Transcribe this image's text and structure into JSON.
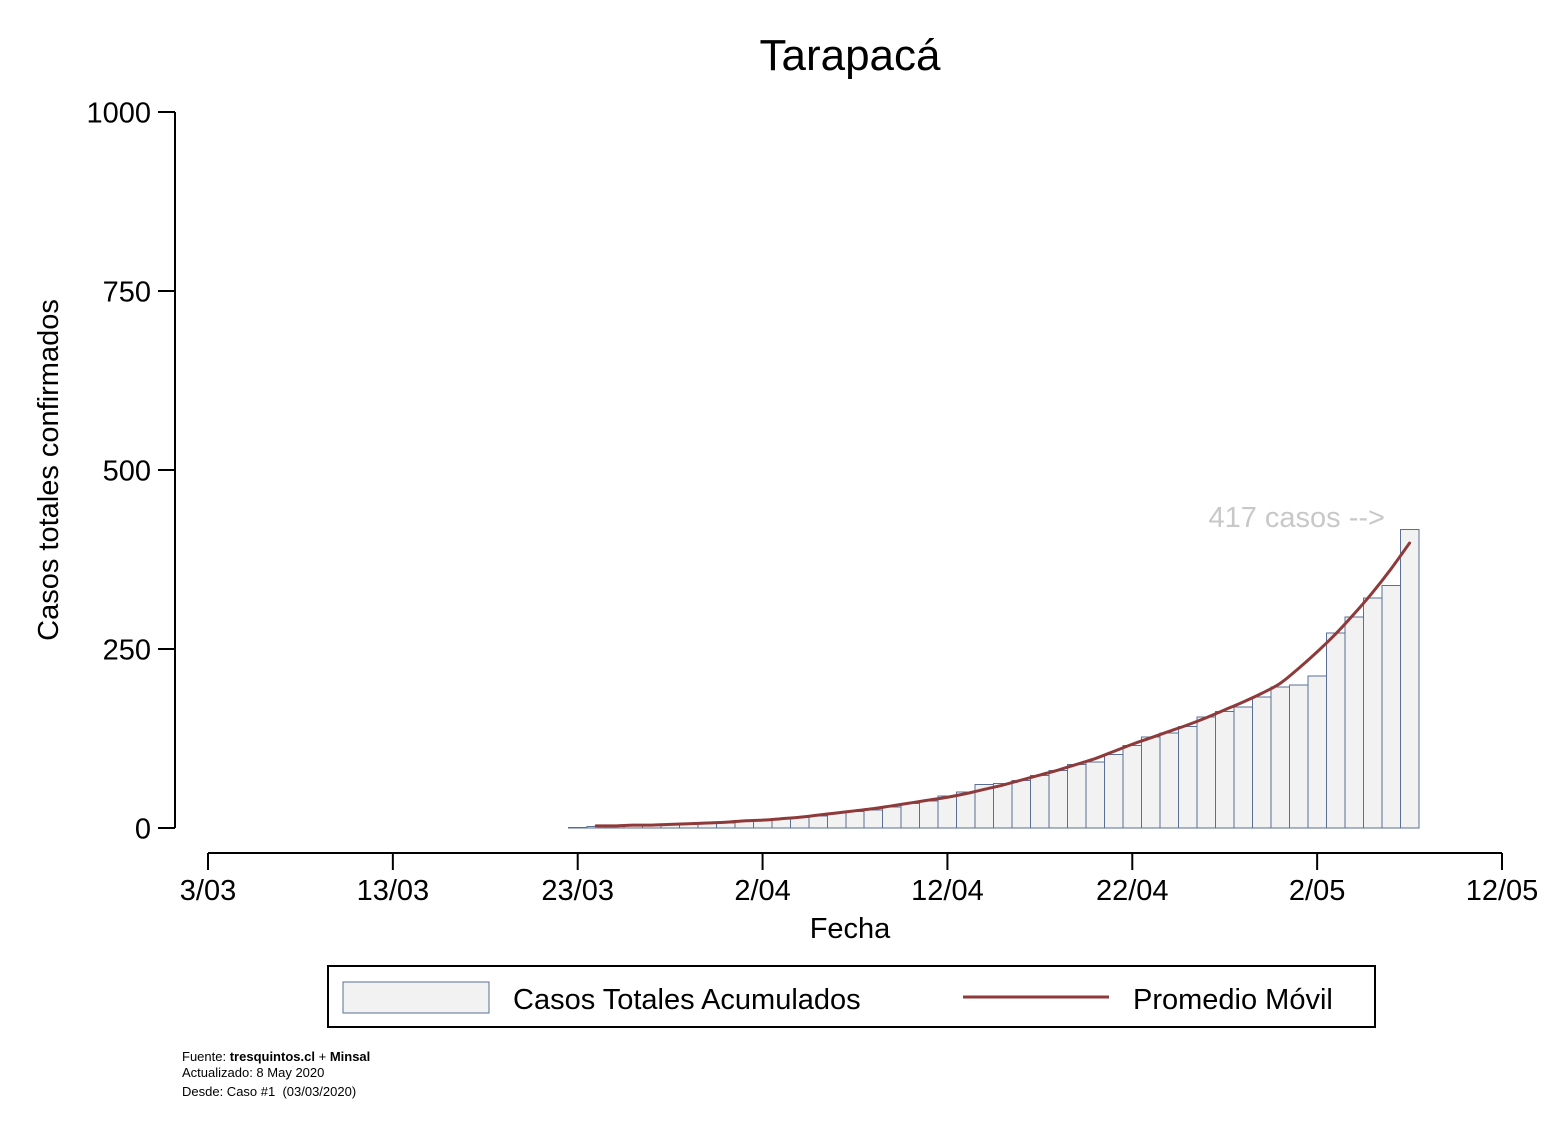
{
  "chart_data": {
    "type": "bar",
    "title": "Tarapacá",
    "xlabel": "Fecha",
    "ylabel": "Casos totales confirmados",
    "xlim": [
      "2020-03-03",
      "2020-05-12"
    ],
    "ylim": [
      0,
      1000
    ],
    "y_ticks": [
      0,
      250,
      500,
      750,
      1000
    ],
    "x_ticks": [
      {
        "date": "2020-03-03",
        "label": "3/03"
      },
      {
        "date": "2020-03-13",
        "label": "13/03"
      },
      {
        "date": "2020-03-23",
        "label": "23/03"
      },
      {
        "date": "2020-04-02",
        "label": "2/04"
      },
      {
        "date": "2020-04-12",
        "label": "12/04"
      },
      {
        "date": "2020-04-22",
        "label": "22/04"
      },
      {
        "date": "2020-05-02",
        "label": "2/05"
      },
      {
        "date": "2020-05-12",
        "label": "12/05"
      }
    ],
    "grid": false,
    "legend_position": "bottom",
    "dates": [
      "2020-03-23",
      "2020-03-24",
      "2020-03-25",
      "2020-03-26",
      "2020-03-27",
      "2020-03-28",
      "2020-03-29",
      "2020-03-30",
      "2020-03-31",
      "2020-04-01",
      "2020-04-02",
      "2020-04-03",
      "2020-04-04",
      "2020-04-05",
      "2020-04-06",
      "2020-04-07",
      "2020-04-08",
      "2020-04-09",
      "2020-04-10",
      "2020-04-11",
      "2020-04-12",
      "2020-04-13",
      "2020-04-14",
      "2020-04-15",
      "2020-04-16",
      "2020-04-17",
      "2020-04-18",
      "2020-04-19",
      "2020-04-20",
      "2020-04-21",
      "2020-04-22",
      "2020-04-23",
      "2020-04-24",
      "2020-04-25",
      "2020-04-26",
      "2020-04-27",
      "2020-04-28",
      "2020-04-29",
      "2020-04-30",
      "2020-05-01",
      "2020-05-02",
      "2020-05-03",
      "2020-05-04",
      "2020-05-05",
      "2020-05-06",
      "2020-05-07"
    ],
    "series": [
      {
        "name": "Casos Totales Acumulados",
        "type": "bar",
        "values": [
          1,
          2,
          3,
          3,
          4,
          5,
          5,
          6,
          7,
          9,
          11,
          13,
          15,
          17,
          21,
          23,
          25,
          29,
          34,
          38,
          45,
          50,
          61,
          62,
          66,
          73,
          80,
          89,
          92,
          103,
          115,
          127,
          133,
          142,
          155,
          163,
          169,
          183,
          197,
          200,
          212,
          272,
          295,
          321,
          339,
          417
        ]
      },
      {
        "name": "Promedio Móvil",
        "type": "line",
        "values": [
          null,
          3,
          3,
          4,
          4,
          5,
          6,
          7,
          8,
          10,
          11,
          13,
          15,
          18,
          21,
          24,
          27,
          31,
          35,
          39,
          43,
          48,
          54,
          60,
          67,
          74,
          81,
          89,
          97,
          107,
          117,
          126,
          135,
          144,
          154,
          165,
          176,
          188,
          202,
          223,
          246,
          271,
          299,
          329,
          362,
          398
        ]
      }
    ],
    "annotation": {
      "text": "417 casos -->"
    },
    "colors": {
      "bar_fill": "#f2f2f2",
      "bar_stroke": "#5b6f94",
      "line": "#8f3a3a",
      "annotation": "#c8c8c8"
    }
  },
  "footer": {
    "source_label": "Fuente:",
    "source_site": "tresquintos.cl",
    "source_sep": "+",
    "source_org": "Minsal",
    "updated": "Actualizado: 8 May 2020",
    "since": "Desde: Caso #1  (03/03/2020)"
  }
}
